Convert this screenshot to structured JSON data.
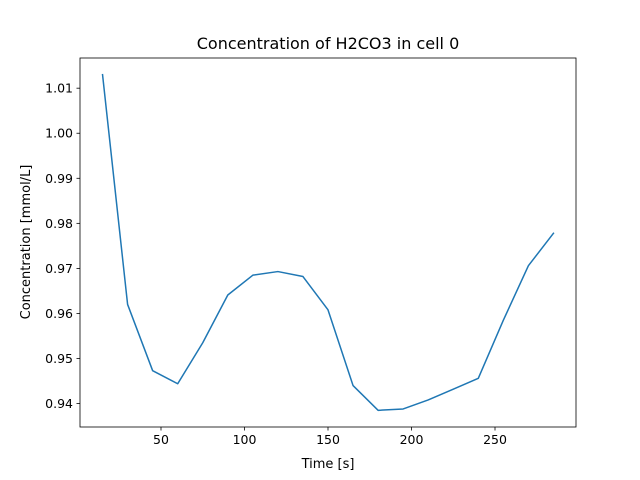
{
  "chart_data": {
    "type": "line",
    "title": "Concentration of H2CO3 in cell 0",
    "xlabel": "Time [s]",
    "ylabel": "Concentration [mmol/L]",
    "xlim": [
      1.5,
      298.5
    ],
    "ylim": [
      0.9348,
      1.0167
    ],
    "xticks": [
      50,
      100,
      150,
      200,
      250
    ],
    "yticks": [
      0.94,
      0.95,
      0.96,
      0.97,
      0.98,
      0.99,
      1.0,
      1.01
    ],
    "ytick_labels": [
      "0.94",
      "0.95",
      "0.96",
      "0.97",
      "0.98",
      "0.99",
      "1.00",
      "1.01"
    ],
    "grid": false,
    "series": [
      {
        "color": "#1f77b4",
        "x": [
          15,
          30,
          45,
          60,
          75,
          90,
          105,
          120,
          135,
          150,
          165,
          180,
          195,
          210,
          225,
          240,
          255,
          270,
          285
        ],
        "y": [
          1.013,
          0.962,
          0.9473,
          0.9444,
          0.9535,
          0.9641,
          0.9685,
          0.9693,
          0.9682,
          0.9608,
          0.944,
          0.9385,
          0.9388,
          0.9408,
          0.9432,
          0.9456,
          0.9585,
          0.9706,
          0.9778
        ]
      }
    ]
  }
}
